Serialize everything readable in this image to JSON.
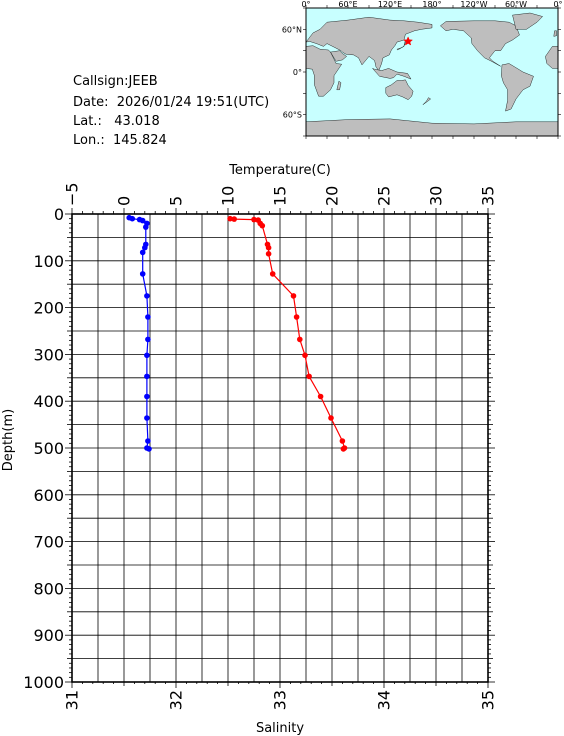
{
  "info": {
    "callsign_label": "Callsign:",
    "callsign": "JEEB",
    "date_label": "Date:",
    "date": "2026/01/24 19:51(UTC)",
    "lat_label": "Lat.:",
    "lat": "43.018",
    "lon_label": "Lon.:",
    "lon": "145.824"
  },
  "map": {
    "lon_labels": [
      "0°",
      "60°E",
      "120°E",
      "180°",
      "120°W",
      "60°W",
      "0°"
    ],
    "lat_labels": [
      "60°N",
      "0°",
      "60°S"
    ],
    "ocean_color": "#c8ffff",
    "land_color": "#bebebe",
    "marker": {
      "lat": 43.018,
      "lon": 145.824,
      "color": "#ff0000"
    }
  },
  "chart_data": {
    "type": "line",
    "ylabel": "Depth(m)",
    "ylim": [
      0,
      1000
    ],
    "yticks": [
      0,
      100,
      200,
      300,
      400,
      500,
      600,
      700,
      800,
      900,
      1000
    ],
    "grid": true,
    "top_axis": {
      "label": "Temperature(C)",
      "range": [
        -5,
        35
      ],
      "ticks": [
        -5,
        0,
        5,
        10,
        15,
        20,
        25,
        30,
        35
      ]
    },
    "bottom_axis": {
      "label": "Salinity",
      "range": [
        31,
        35
      ],
      "ticks": [
        31,
        32,
        33,
        34,
        35
      ]
    },
    "series": [
      {
        "axis": "top",
        "color": "#ff0000",
        "points": [
          [
            10.2,
            10
          ],
          [
            10.6,
            11
          ],
          [
            12.5,
            12
          ],
          [
            12.9,
            13
          ],
          [
            13.1,
            20
          ],
          [
            13.3,
            25
          ],
          [
            13.8,
            65
          ],
          [
            13.9,
            72
          ],
          [
            13.9,
            85
          ],
          [
            14.3,
            128
          ],
          [
            16.3,
            175
          ],
          [
            16.6,
            220
          ],
          [
            16.9,
            268
          ],
          [
            17.4,
            302
          ],
          [
            17.8,
            347
          ],
          [
            18.9,
            390
          ],
          [
            19.9,
            436
          ],
          [
            21.0,
            485
          ],
          [
            21.2,
            500
          ],
          [
            21.1,
            502
          ]
        ]
      },
      {
        "axis": "bottom",
        "color": "#0000ff",
        "points": [
          [
            31.55,
            8
          ],
          [
            31.58,
            10
          ],
          [
            31.65,
            12
          ],
          [
            31.68,
            14
          ],
          [
            31.72,
            20
          ],
          [
            31.71,
            28
          ],
          [
            31.71,
            65
          ],
          [
            31.7,
            72
          ],
          [
            31.68,
            82
          ],
          [
            31.68,
            128
          ],
          [
            31.72,
            175
          ],
          [
            31.73,
            220
          ],
          [
            31.73,
            268
          ],
          [
            31.72,
            302
          ],
          [
            31.72,
            347
          ],
          [
            31.72,
            390
          ],
          [
            31.72,
            436
          ],
          [
            31.73,
            485
          ],
          [
            31.72,
            500
          ],
          [
            31.74,
            502
          ]
        ]
      }
    ]
  }
}
